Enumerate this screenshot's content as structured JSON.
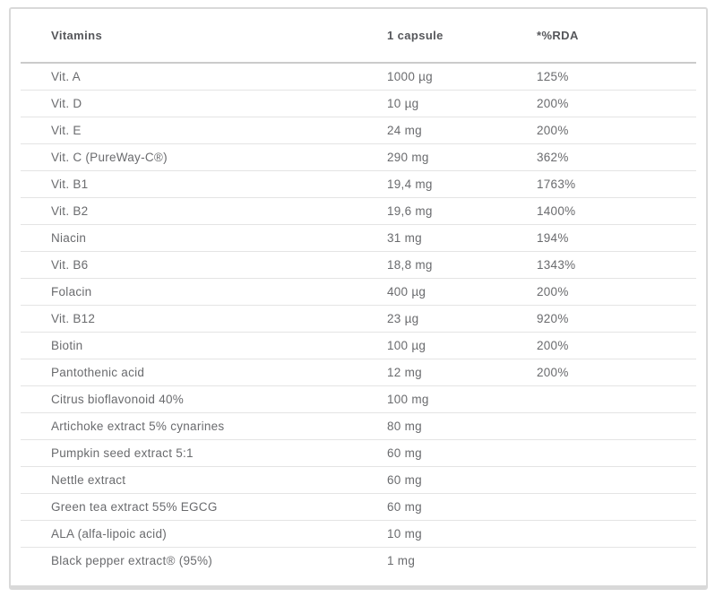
{
  "colors": {
    "card_border": "#d9d9d9",
    "header_rule": "#cbcbcb",
    "row_rule": "#e4e4e4",
    "header_text": "#56575b",
    "body_text": "#6a6b6e",
    "background": "#ffffff"
  },
  "table": {
    "columns": [
      {
        "label": "Vitamins"
      },
      {
        "label": "1 capsule"
      },
      {
        "label": "*%RDA"
      }
    ],
    "rows": [
      {
        "name": "Vit. A",
        "amount": "1000 µg",
        "rda": "125%"
      },
      {
        "name": "Vit. D",
        "amount": "10 µg",
        "rda": "200%"
      },
      {
        "name": "Vit. E",
        "amount": "24 mg",
        "rda": "200%"
      },
      {
        "name": "Vit. C (PureWay-C®)",
        "amount": "290 mg",
        "rda": "362%"
      },
      {
        "name": "Vit. B1",
        "amount": "19,4 mg",
        "rda": "1763%"
      },
      {
        "name": "Vit. B2",
        "amount": "19,6 mg",
        "rda": "1400%"
      },
      {
        "name": "Niacin",
        "amount": "31 mg",
        "rda": "194%"
      },
      {
        "name": "Vit. B6",
        "amount": "18,8 mg",
        "rda": "1343%"
      },
      {
        "name": "Folacin",
        "amount": "400 µg",
        "rda": "200%"
      },
      {
        "name": "Vit. B12",
        "amount": "23 µg",
        "rda": "920%"
      },
      {
        "name": "Biotin",
        "amount": "100 µg",
        "rda": "200%"
      },
      {
        "name": "Pantothenic acid",
        "amount": "12 mg",
        "rda": "200%"
      },
      {
        "name": "Citrus bioflavonoid 40%",
        "amount": "100 mg",
        "rda": ""
      },
      {
        "name": "Artichoke extract 5% cynarines",
        "amount": "80 mg",
        "rda": ""
      },
      {
        "name": "Pumpkin seed extract 5:1",
        "amount": "60 mg",
        "rda": ""
      },
      {
        "name": "Nettle extract",
        "amount": "60 mg",
        "rda": ""
      },
      {
        "name": "Green tea extract 55% EGCG",
        "amount": "60 mg",
        "rda": ""
      },
      {
        "name": "ALA (alfa-lipoic acid)",
        "amount": "10 mg",
        "rda": ""
      },
      {
        "name": "Black pepper extract® (95%)",
        "amount": "1 mg",
        "rda": ""
      }
    ]
  }
}
